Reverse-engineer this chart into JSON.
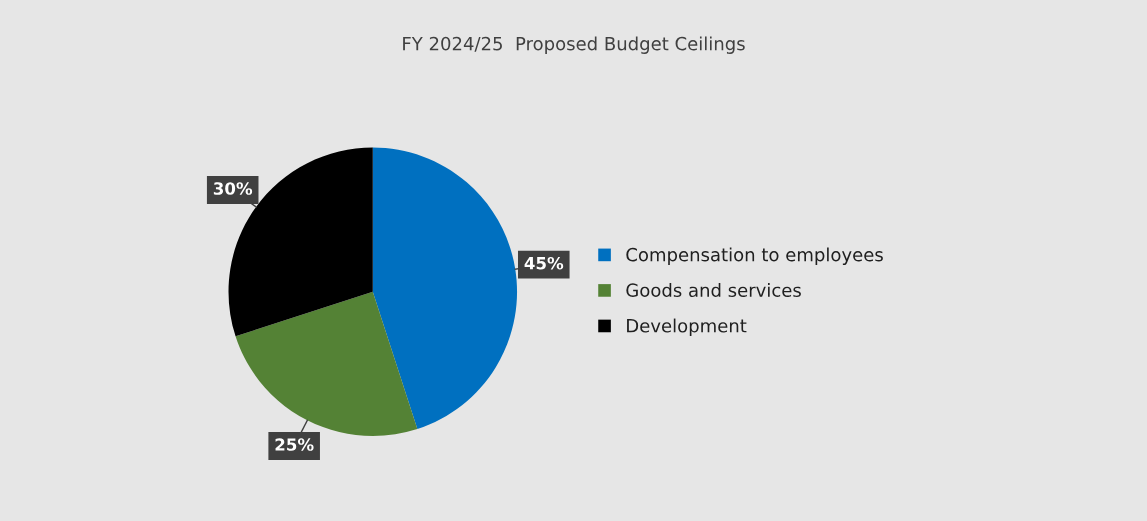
{
  "chart_data": {
    "type": "pie",
    "title": "FY 2024/25  Proposed Budget Ceilings",
    "categories": [
      "Compensation to employees",
      "Goods and services",
      "Development"
    ],
    "values": [
      45,
      25,
      30
    ],
    "colors": [
      "#0070c0",
      "#548235",
      "#000000"
    ],
    "value_labels": [
      "45%",
      "25%",
      "30%"
    ],
    "legend": "right"
  }
}
